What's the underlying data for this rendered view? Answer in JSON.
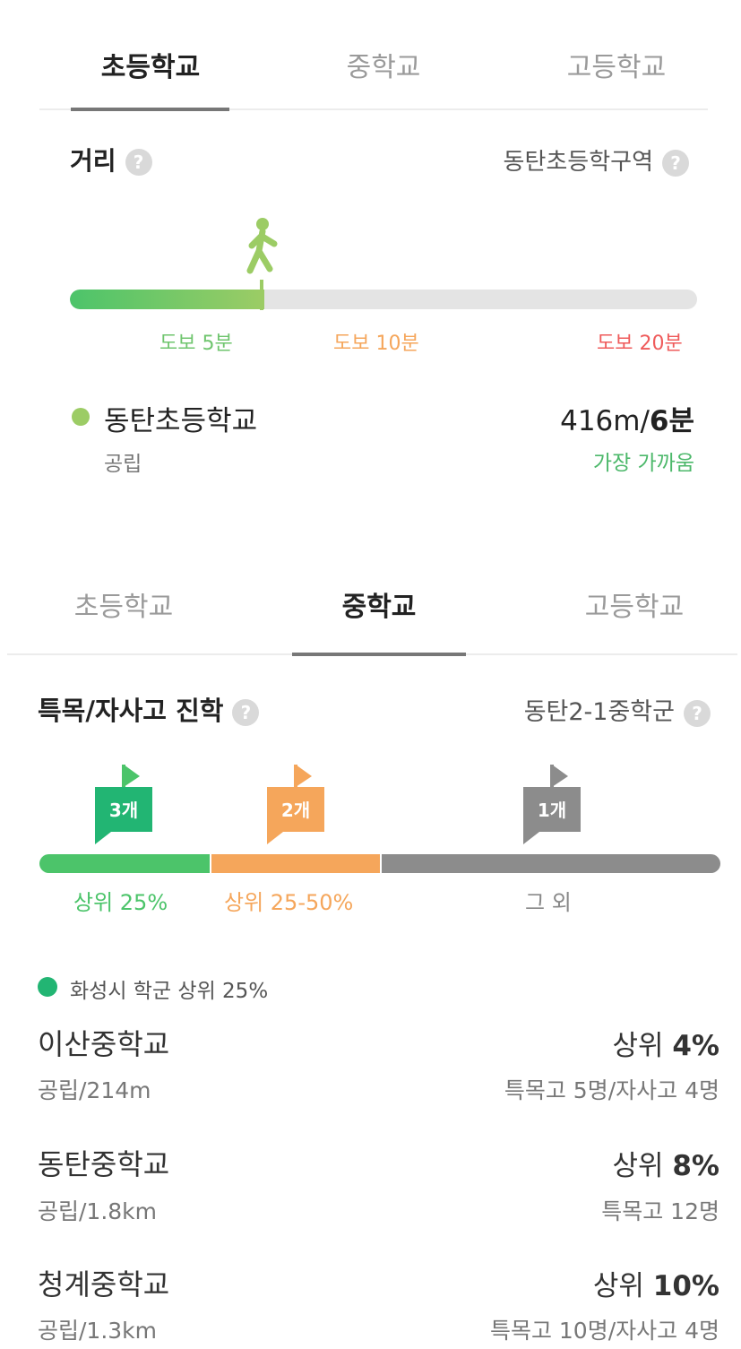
{
  "elem_tabs": [
    "초등학교",
    "중학교",
    "고등학교"
  ],
  "distance": {
    "label": "거리",
    "zone": "동탄초등학구역",
    "progress": 0.31,
    "markers": [
      "도보 5분",
      "도보 10분",
      "도보 20분"
    ],
    "school": {
      "name": "동탄초등학교",
      "type": "공립",
      "distance": "416m/",
      "time": "6분",
      "note": "가장 가까움"
    }
  },
  "middle_tabs": [
    "초등학교",
    "중학교",
    "고등학교"
  ],
  "advance": {
    "label": "특목/자사고 진학",
    "district": "동탄2-1중학군",
    "flags": [
      "3개",
      "2개",
      "1개"
    ],
    "segments": [
      "상위 25%",
      "상위 25-50%",
      "그 외"
    ],
    "legend": "화성시 학군 상위 25%",
    "schools": [
      {
        "name": "이산중학교",
        "sub": "공립/214m",
        "rank_prefix": "상위 ",
        "rank": "4%",
        "stats": "특목고 5명/자사고 4명"
      },
      {
        "name": "동탄중학교",
        "sub": "공립/1.8km",
        "rank_prefix": "상위 ",
        "rank": "8%",
        "stats": "특목고 12명"
      },
      {
        "name": "청계중학교",
        "sub": "공립/1.3km",
        "rank_prefix": "상위 ",
        "rank": "10%",
        "stats": "특목고 10명/자사고 4명"
      }
    ]
  },
  "colors": {
    "green": "#4cc46a",
    "light_green": "#9ccc65",
    "orange": "#f5a65b",
    "red": "#ef5b5b",
    "gray": "#8c8c8c"
  }
}
